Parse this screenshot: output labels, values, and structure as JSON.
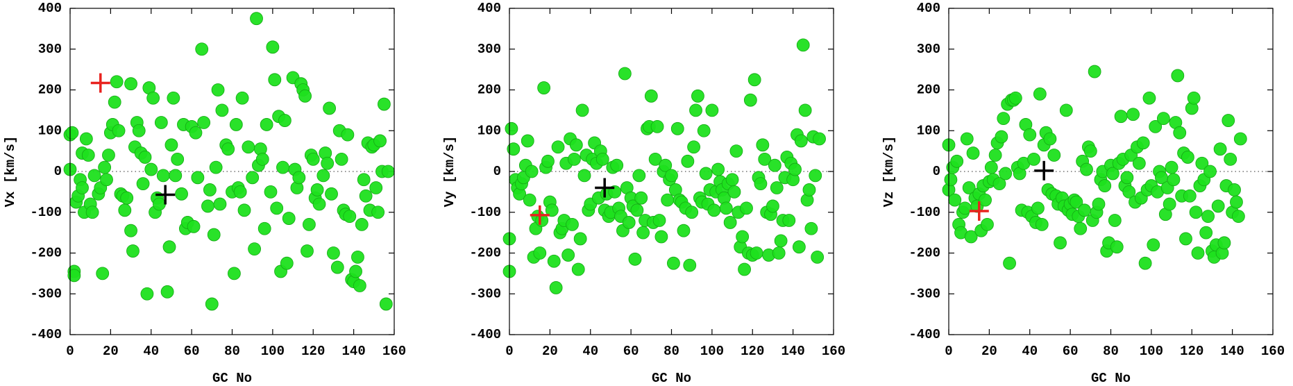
{
  "chart_data": [
    {
      "type": "scatter",
      "xlabel": "GC No",
      "ylabel": "Vx [km/s]",
      "color": "#1ee01e",
      "zeroline": true,
      "xlim": [
        0,
        160
      ],
      "xticks": [
        0,
        20,
        40,
        60,
        80,
        100,
        120,
        140,
        160
      ],
      "ylim": [
        -400,
        400
      ],
      "yticks": [
        -400,
        -300,
        -200,
        -100,
        0,
        100,
        200,
        300,
        400
      ],
      "x": [
        0,
        0,
        1,
        2,
        2,
        3,
        4,
        5,
        6,
        6,
        7,
        8,
        9,
        10,
        11,
        12,
        14,
        15,
        16,
        17,
        18,
        19,
        20,
        21,
        22,
        23,
        24,
        25,
        26,
        27,
        28,
        30,
        30,
        31,
        32,
        33,
        34,
        35,
        36,
        37,
        38,
        39,
        40,
        41,
        42,
        43,
        44,
        45,
        46,
        48,
        49,
        50,
        51,
        52,
        53,
        55,
        56,
        57,
        58,
        60,
        61,
        62,
        63,
        65,
        66,
        68,
        69,
        70,
        71,
        72,
        73,
        74,
        75,
        77,
        78,
        80,
        81,
        82,
        83,
        84,
        85,
        86,
        88,
        90,
        91,
        92,
        93,
        94,
        95,
        96,
        97,
        99,
        100,
        101,
        102,
        103,
        104,
        105,
        106,
        107,
        108,
        110,
        111,
        112,
        113,
        114,
        115,
        116,
        117,
        118,
        119,
        120,
        121,
        122,
        123,
        125,
        126,
        127,
        128,
        129,
        130,
        132,
        133,
        134,
        135,
        136,
        137,
        138,
        139,
        140,
        141,
        142,
        143,
        144,
        145,
        146,
        147,
        148,
        149,
        150,
        151,
        152,
        153,
        154,
        155,
        156,
        157
      ],
      "values": [
        90,
        5,
        95,
        -245,
        -255,
        -75,
        -60,
        -20,
        -40,
        45,
        -100,
        80,
        40,
        -80,
        -100,
        -10,
        -55,
        -40,
        -250,
        10,
        -20,
        40,
        95,
        115,
        170,
        220,
        100,
        -55,
        -60,
        -95,
        -65,
        215,
        -145,
        -195,
        60,
        120,
        100,
        45,
        -30,
        35,
        -300,
        205,
        5,
        180,
        -100,
        -65,
        -80,
        120,
        -10,
        -295,
        -185,
        65,
        180,
        -10,
        30,
        -55,
        115,
        -140,
        -125,
        110,
        -135,
        95,
        -15,
        300,
        120,
        -85,
        -45,
        -325,
        -155,
        10,
        200,
        -80,
        150,
        65,
        55,
        -50,
        -250,
        115,
        -40,
        -50,
        180,
        -95,
        60,
        -15,
        -190,
        375,
        15,
        55,
        30,
        -140,
        115,
        -50,
        305,
        225,
        -90,
        135,
        -245,
        10,
        125,
        -225,
        -115,
        230,
        5,
        -40,
        -15,
        215,
        200,
        185,
        -195,
        -130,
        40,
        30,
        -65,
        -45,
        -80,
        -10,
        45,
        20,
        155,
        -55,
        -200,
        -235,
        100,
        30,
        -95,
        -105,
        90,
        -110,
        -265,
        -270,
        -245,
        -210,
        -280,
        -130,
        -20,
        -60,
        70,
        -95,
        60,
        65,
        -40,
        -100,
        75,
        0,
        165,
        -325,
        0
      ],
      "markers": [
        {
          "x": 15,
          "y": 217,
          "color": "#e8231f"
        },
        {
          "x": 47,
          "y": -57,
          "color": "#000000"
        }
      ]
    },
    {
      "type": "scatter",
      "xlabel": "GC No",
      "ylabel": "Vy [km/s]",
      "color": "#1ee01e",
      "zeroline": true,
      "xlim": [
        0,
        160
      ],
      "xticks": [
        0,
        20,
        40,
        60,
        80,
        100,
        120,
        140,
        160
      ],
      "ylim": [
        -400,
        400
      ],
      "yticks": [
        -400,
        -300,
        -200,
        -100,
        0,
        100,
        200,
        300,
        400
      ],
      "x": [
        0,
        0,
        1,
        2,
        3,
        4,
        5,
        6,
        7,
        8,
        9,
        10,
        11,
        12,
        13,
        14,
        15,
        16,
        17,
        18,
        19,
        20,
        21,
        22,
        23,
        24,
        25,
        26,
        27,
        28,
        29,
        30,
        31,
        32,
        33,
        34,
        35,
        36,
        37,
        38,
        39,
        40,
        41,
        42,
        43,
        44,
        45,
        46,
        47,
        48,
        49,
        50,
        51,
        52,
        53,
        54,
        55,
        56,
        57,
        58,
        59,
        60,
        61,
        62,
        63,
        64,
        65,
        66,
        67,
        68,
        69,
        70,
        71,
        72,
        73,
        74,
        75,
        76,
        77,
        78,
        79,
        80,
        81,
        82,
        83,
        84,
        85,
        86,
        87,
        88,
        89,
        90,
        91,
        92,
        93,
        94,
        95,
        96,
        97,
        98,
        99,
        100,
        101,
        102,
        103,
        104,
        105,
        106,
        107,
        108,
        109,
        110,
        111,
        112,
        113,
        114,
        115,
        116,
        117,
        118,
        119,
        120,
        121,
        122,
        123,
        124,
        125,
        126,
        127,
        128,
        129,
        130,
        131,
        132,
        133,
        134,
        135,
        136,
        137,
        138,
        139,
        140,
        141,
        142,
        143,
        144,
        145,
        146,
        147,
        148,
        149,
        150,
        151,
        152,
        153
      ],
      "values": [
        -245,
        -165,
        105,
        55,
        -20,
        -40,
        -55,
        -30,
        -15,
        15,
        75,
        -70,
        0,
        -210,
        -140,
        -110,
        -200,
        -120,
        205,
        10,
        25,
        -75,
        -95,
        -220,
        -285,
        60,
        -150,
        -140,
        -120,
        20,
        -205,
        80,
        -130,
        30,
        65,
        -240,
        -165,
        150,
        -10,
        40,
        -95,
        -80,
        30,
        70,
        20,
        -65,
        50,
        30,
        -95,
        -55,
        -110,
        -100,
        10,
        -50,
        15,
        -90,
        -110,
        -145,
        240,
        -40,
        -125,
        -65,
        -85,
        -215,
        -95,
        -10,
        -65,
        -150,
        -120,
        105,
        110,
        185,
        -125,
        30,
        110,
        -120,
        -160,
        0,
        15,
        -70,
        -20,
        -10,
        -225,
        -45,
        105,
        -70,
        -75,
        -145,
        -90,
        25,
        -230,
        -100,
        60,
        150,
        185,
        -65,
        -75,
        100,
        -5,
        -80,
        -45,
        150,
        -95,
        -50,
        5,
        -25,
        -45,
        -65,
        -90,
        -30,
        -125,
        -20,
        -50,
        50,
        -100,
        -185,
        -160,
        -240,
        -90,
        -200,
        175,
        -205,
        225,
        -200,
        -15,
        -30,
        65,
        30,
        -100,
        -205,
        -105,
        -85,
        15,
        -40,
        -200,
        -170,
        -120,
        -15,
        35,
        -120,
        20,
        -20,
        5,
        90,
        -185,
        75,
        310,
        150,
        -70,
        -45,
        -140,
        85,
        -10,
        -210,
        80
      ],
      "markers": [
        {
          "x": 15,
          "y": -107,
          "color": "#e8231f"
        },
        {
          "x": 47,
          "y": -40,
          "color": "#000000"
        }
      ]
    },
    {
      "type": "scatter",
      "xlabel": "GC No",
      "ylabel": "Vz [km/s]",
      "color": "#1ee01e",
      "zeroline": true,
      "xlim": [
        0,
        160
      ],
      "xticks": [
        0,
        20,
        40,
        60,
        80,
        100,
        120,
        140,
        160
      ],
      "ylim": [
        -400,
        400
      ],
      "yticks": [
        -400,
        -300,
        -200,
        -100,
        0,
        100,
        200,
        300,
        400
      ],
      "x": [
        0,
        0,
        1,
        2,
        3,
        4,
        5,
        6,
        7,
        8,
        9,
        10,
        11,
        12,
        13,
        14,
        15,
        16,
        17,
        18,
        19,
        20,
        21,
        22,
        23,
        24,
        25,
        26,
        27,
        28,
        29,
        30,
        31,
        32,
        33,
        34,
        35,
        36,
        37,
        38,
        39,
        40,
        41,
        42,
        43,
        44,
        45,
        46,
        47,
        48,
        49,
        50,
        51,
        52,
        53,
        54,
        55,
        56,
        57,
        58,
        59,
        60,
        61,
        62,
        63,
        64,
        65,
        66,
        67,
        68,
        69,
        70,
        71,
        72,
        73,
        74,
        75,
        76,
        77,
        78,
        79,
        80,
        81,
        82,
        83,
        84,
        85,
        86,
        87,
        88,
        89,
        90,
        91,
        92,
        93,
        94,
        95,
        96,
        97,
        98,
        99,
        100,
        101,
        102,
        103,
        104,
        105,
        106,
        107,
        108,
        109,
        110,
        111,
        112,
        113,
        114,
        115,
        116,
        117,
        118,
        119,
        120,
        121,
        122,
        123,
        124,
        125,
        126,
        127,
        128,
        129,
        130,
        131,
        132,
        133,
        134,
        135,
        136,
        137,
        138,
        139,
        140,
        141,
        142,
        143,
        144
      ],
      "values": [
        -45,
        65,
        -20,
        10,
        -70,
        25,
        -130,
        -150,
        -100,
        -90,
        80,
        -40,
        -160,
        45,
        -65,
        -85,
        -55,
        -145,
        -35,
        -70,
        -130,
        -25,
        10,
        -20,
        40,
        70,
        -30,
        85,
        130,
        -5,
        165,
        -225,
        175,
        175,
        180,
        10,
        -5,
        -95,
        20,
        115,
        -100,
        90,
        -110,
        30,
        -125,
        -90,
        190,
        -130,
        65,
        95,
        -45,
        80,
        -55,
        40,
        -60,
        -80,
        -175,
        -65,
        -85,
        150,
        -95,
        -80,
        -105,
        -70,
        -75,
        -110,
        -140,
        25,
        -95,
        5,
        60,
        50,
        -120,
        245,
        -100,
        -80,
        -20,
        0,
        -35,
        -195,
        -175,
        15,
        -5,
        -120,
        -185,
        20,
        135,
        30,
        -35,
        -15,
        -50,
        40,
        140,
        -75,
        60,
        20,
        -65,
        70,
        -225,
        -45,
        180,
        -35,
        -180,
        110,
        -50,
        0,
        -15,
        130,
        -105,
        -40,
        -80,
        10,
        -20,
        120,
        235,
        95,
        -60,
        45,
        -165,
        35,
        -60,
        155,
        180,
        -100,
        -200,
        -35,
        20,
        -20,
        -150,
        -110,
        0,
        -195,
        -210,
        -180,
        -85,
        55,
        -200,
        -175,
        -35,
        125,
        30,
        -100,
        -45,
        -75,
        -110,
        80
      ],
      "markers": [
        {
          "x": 15,
          "y": -97,
          "color": "#e8231f"
        },
        {
          "x": 47,
          "y": 2,
          "color": "#000000"
        }
      ]
    }
  ]
}
